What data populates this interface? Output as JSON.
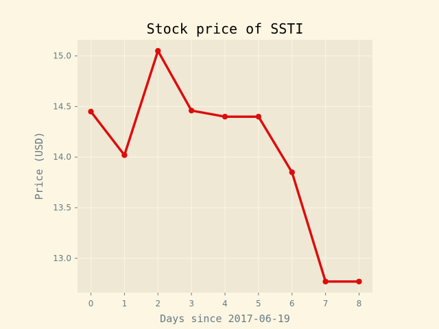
{
  "chart_data": {
    "type": "line",
    "title": "Stock price of SSTI",
    "xlabel": "Days since 2017-06-19",
    "ylabel": "Price (USD)",
    "x": [
      0,
      1,
      2,
      3,
      4,
      5,
      6,
      7,
      8
    ],
    "series": [
      {
        "values": [
          14.45,
          14.02,
          15.05,
          14.46,
          14.4,
          14.4,
          13.85,
          12.77,
          12.77
        ]
      }
    ],
    "xlim": [
      -0.4,
      8.4
    ],
    "ylim": [
      12.66,
      15.16
    ],
    "xticks": [
      "0",
      "1",
      "2",
      "3",
      "4",
      "5",
      "6",
      "7",
      "8"
    ],
    "yticks": [
      "13.0",
      "13.5",
      "14.0",
      "14.5",
      "15.0"
    ],
    "grid": true,
    "legend": "none",
    "colors": {
      "figure_background": "#fdf6e3",
      "plot_background": "#eee8d5",
      "grid": "#fdf6e3",
      "line": "#dc0d0d",
      "text": "#657b83"
    }
  }
}
